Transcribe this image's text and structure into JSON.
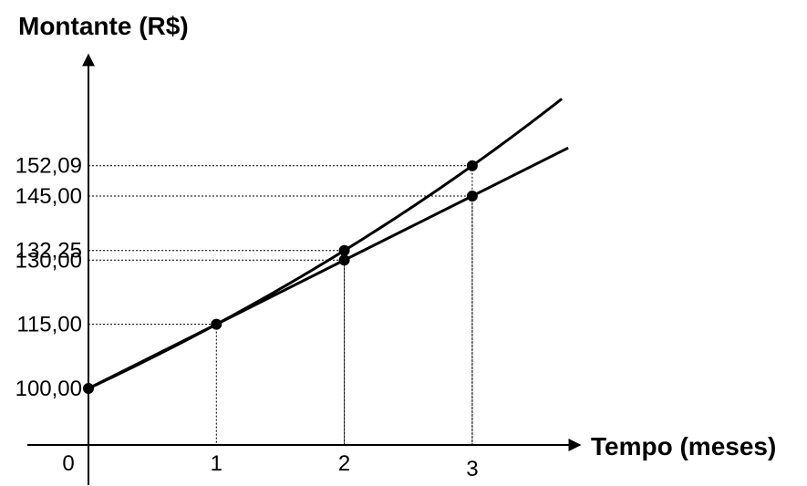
{
  "chart_data": {
    "type": "line",
    "ylabel": "Montante (R$)",
    "xlabel": "Tempo (meses)",
    "x_ticks": [
      "0",
      "1",
      "2",
      "3"
    ],
    "y_ticks": [
      {
        "value": 100.0,
        "label": "100,00"
      },
      {
        "value": 115.0,
        "label": "115,00"
      },
      {
        "value": 130.0,
        "label": "130,00"
      },
      {
        "value": 132.25,
        "label": "132,25"
      },
      {
        "value": 145.0,
        "label": "145,00"
      },
      {
        "value": 152.09,
        "label": "152,09"
      }
    ],
    "series": [
      {
        "x": [
          0,
          1,
          2,
          3
        ],
        "values": [
          100.0,
          115.0,
          130.0,
          145.0
        ]
      },
      {
        "x": [
          0,
          1,
          2,
          3
        ],
        "values": [
          100.0,
          115.0,
          132.25,
          152.09
        ]
      }
    ],
    "legend": false
  }
}
